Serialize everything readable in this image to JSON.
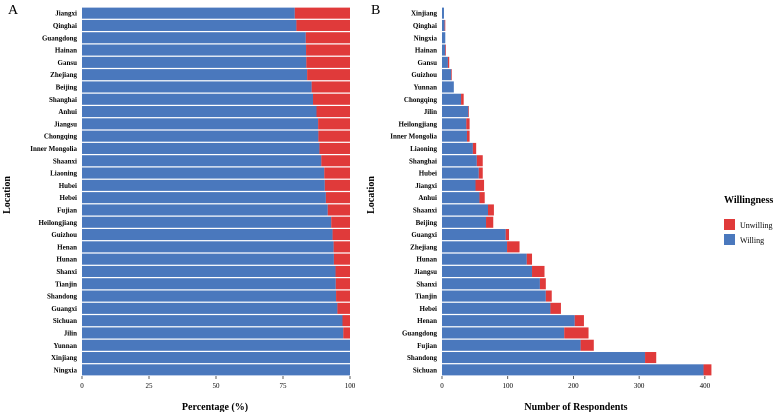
{
  "legend": {
    "title": "Willingness",
    "items": [
      {
        "label": "Unwilling",
        "color": "#e03a3a"
      },
      {
        "label": "Willing",
        "color": "#4a78bd"
      }
    ]
  },
  "chart_data": [
    {
      "type": "bar",
      "orientation": "horizontal",
      "stacked": true,
      "panel_label": "A",
      "xlabel": "Percentage (%)",
      "ylabel": "Location",
      "xlim": [
        0,
        100
      ],
      "xticks": [
        "0",
        "25",
        "50",
        "75",
        "100"
      ],
      "categories": [
        "Jiangxi",
        "Qinghai",
        "Guangdong",
        "Hainan",
        "Gansu",
        "Zhejiang",
        "Beijing",
        "Shanghai",
        "Anhui",
        "Jiangsu",
        "Chongqing",
        "Inner Mongolia",
        "Shaanxi",
        "Liaoning",
        "Hubei",
        "Hebei",
        "Fujian",
        "Heilongjiang",
        "Guizhou",
        "Henan",
        "Hunan",
        "Shanxi",
        "Tianjin",
        "Shandong",
        "Guangxi",
        "Sichuan",
        "Jilin",
        "Yunnan",
        "Xinjiang",
        "Ningxia"
      ],
      "series": [
        {
          "name": "Willing",
          "color": "#4a78bd",
          "values": [
            79.4,
            80.0,
            83.5,
            83.6,
            83.7,
            84.0,
            85.7,
            86.2,
            87.5,
            88.1,
            88.2,
            88.6,
            89.3,
            90.4,
            90.6,
            91.0,
            91.7,
            93.0,
            93.5,
            93.9,
            94.0,
            94.6,
            94.7,
            94.8,
            95.3,
            97.2,
            97.5,
            100,
            100,
            100
          ]
        },
        {
          "name": "Unwilling",
          "color": "#e03a3a",
          "values": [
            20.6,
            20.0,
            16.5,
            16.4,
            16.3,
            16.0,
            14.3,
            13.8,
            12.5,
            11.9,
            11.8,
            11.4,
            10.7,
            9.6,
            9.4,
            9.0,
            8.3,
            7.0,
            6.5,
            6.1,
            6.0,
            5.4,
            5.3,
            5.2,
            4.7,
            2.8,
            2.5,
            0,
            0,
            0
          ]
        }
      ]
    },
    {
      "type": "bar",
      "orientation": "horizontal",
      "stacked": true,
      "panel_label": "B",
      "xlabel": "Number of Respondents",
      "ylabel": "Location",
      "xlim": [
        0,
        420
      ],
      "xticks": [
        "0",
        "100",
        "200",
        "300",
        "400"
      ],
      "categories": [
        "Xinjiang",
        "Qinghai",
        "Ningxia",
        "Hainan",
        "Gansu",
        "Guizhou",
        "Yunnan",
        "Chongqing",
        "Jilin",
        "Heilongjiang",
        "Inner Mongolia",
        "Liaoning",
        "Shanghai",
        "Hubei",
        "Jiangxi",
        "Anhui",
        "Shaanxi",
        "Beijing",
        "Guangxi",
        "Zhejiang",
        "Hunan",
        "Jiangsu",
        "Shanxi",
        "Tianjin",
        "Hebei",
        "Henan",
        "Guangdong",
        "Fujian",
        "Shandong",
        "Sichuan"
      ],
      "series": [
        {
          "name": "Willing",
          "color": "#4a78bd",
          "values": [
            3,
            4,
            5,
            5,
            9,
            14,
            18,
            29,
            40,
            37,
            38,
            47,
            53,
            56,
            51,
            57,
            70,
            67,
            97,
            99,
            129,
            137,
            149,
            158,
            165,
            202,
            186,
            211,
            309,
            398
          ]
        },
        {
          "name": "Unwilling",
          "color": "#e03a3a",
          "values": [
            0,
            1,
            0,
            1,
            2,
            1,
            0,
            4,
            1,
            5,
            4,
            5,
            9,
            6,
            13,
            8,
            9,
            11,
            5,
            19,
            8,
            19,
            9,
            9,
            16,
            14,
            37,
            20,
            17,
            12
          ]
        }
      ]
    }
  ]
}
